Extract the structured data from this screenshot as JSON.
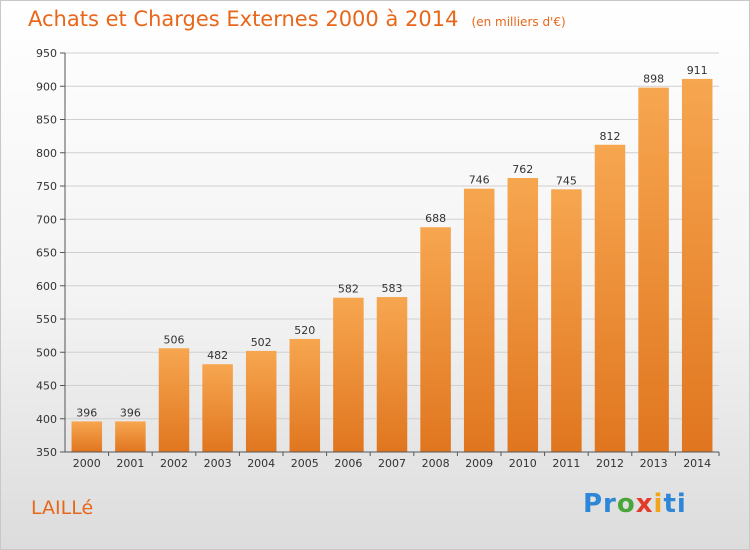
{
  "page": {
    "city": "LAILLé",
    "logo": "Proxiti"
  },
  "chart_data": {
    "type": "bar",
    "title": "Achats et Charges Externes 2000 à 2014",
    "unit_label": "(en milliers d'€)",
    "categories": [
      "2000",
      "2001",
      "2002",
      "2003",
      "2004",
      "2005",
      "2006",
      "2007",
      "2008",
      "2009",
      "2010",
      "2011",
      "2012",
      "2013",
      "2014"
    ],
    "values": [
      396,
      396,
      506,
      482,
      502,
      520,
      582,
      583,
      688,
      746,
      762,
      745,
      812,
      898,
      911
    ],
    "ylim": [
      350,
      950
    ],
    "yticks": [
      350,
      400,
      450,
      500,
      550,
      600,
      650,
      700,
      750,
      800,
      850,
      900,
      950
    ],
    "grid": true,
    "bar_color_top": "#f7a650",
    "bar_color_bottom": "#e0761f"
  }
}
